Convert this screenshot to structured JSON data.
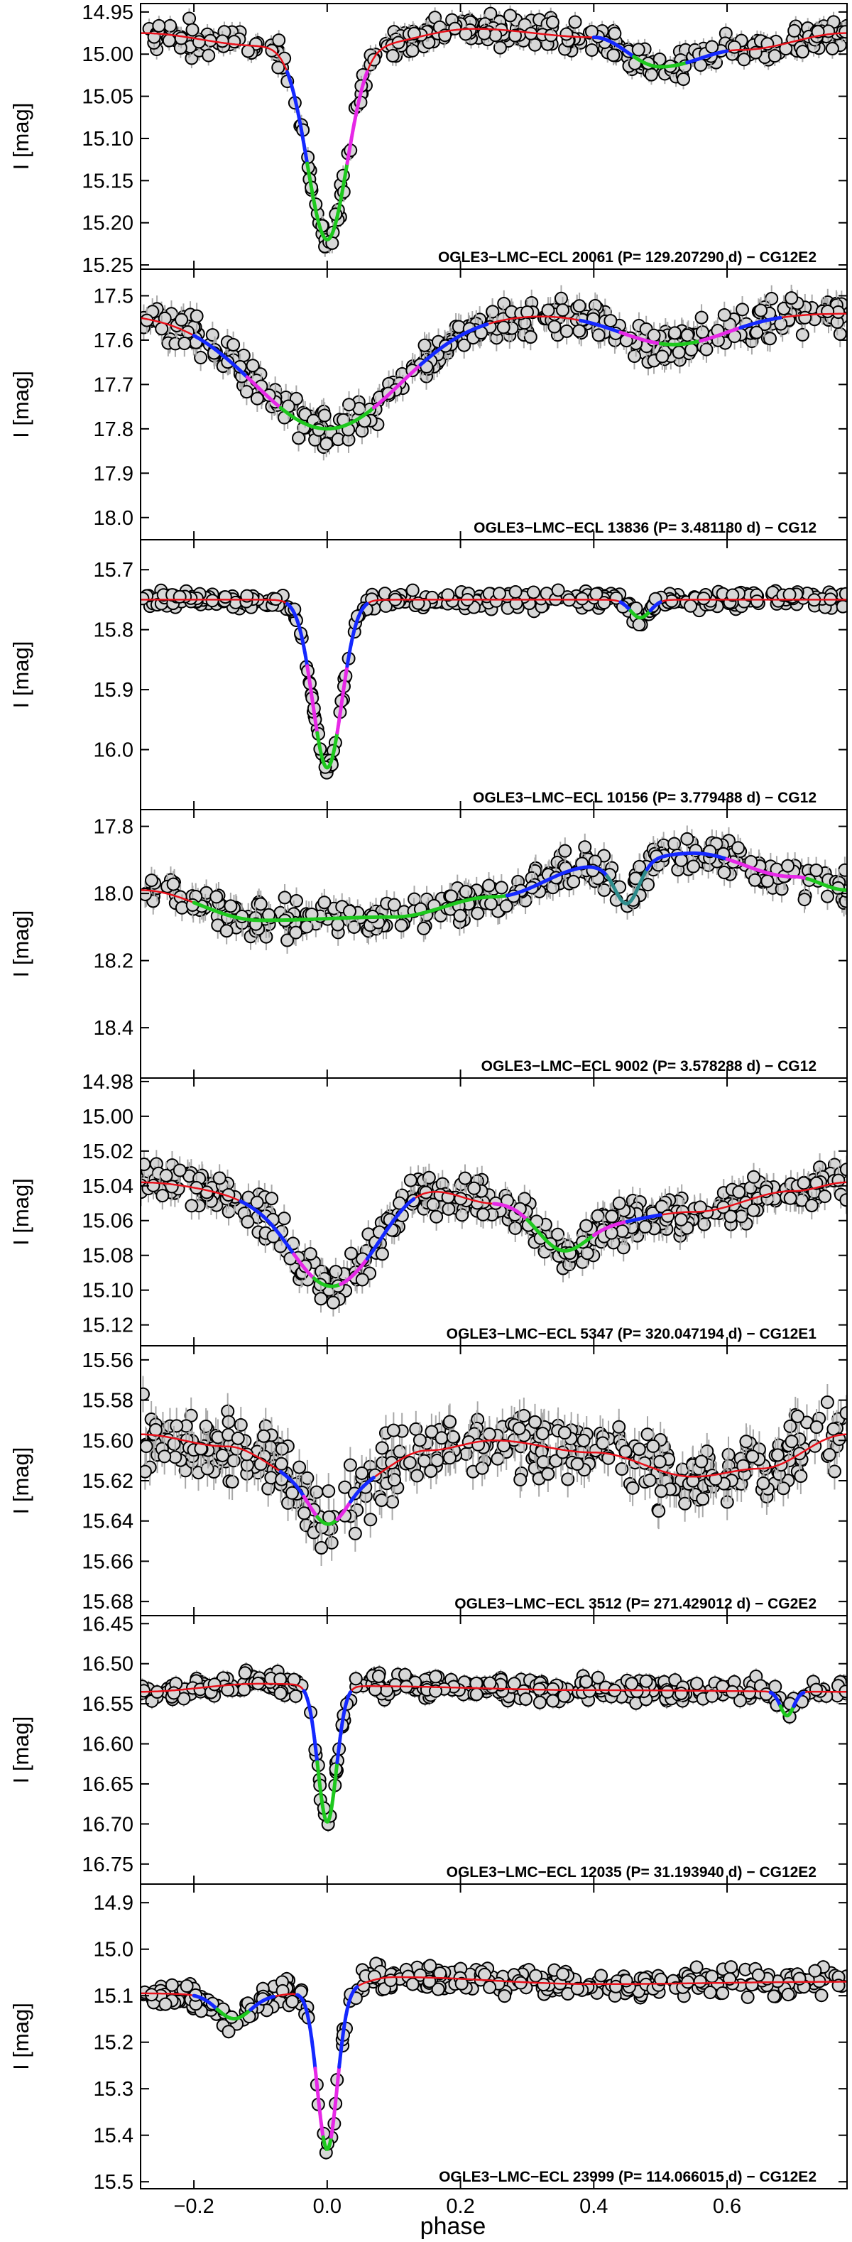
{
  "figure": {
    "xlabel": "phase",
    "ylabel": "I [mag]"
  },
  "chart_data": [
    {
      "type": "scatter",
      "title": "OGLE3-LMC-ECL 20061 (P= 129.207290 d) – CG12E2",
      "annotation": "OGLE3−LMC−ECL 20061  (P= 129.207290 d) − CG12E2",
      "xlabel": "phase",
      "ylabel": "I [mag]",
      "xlim": [
        -0.28,
        0.78
      ],
      "ylim": [
        14.94,
        15.255
      ],
      "y_inverted": true,
      "y_ticks": [
        14.95,
        15.0,
        15.05,
        15.1,
        15.15,
        15.2,
        15.25
      ],
      "y_tick_labels": [
        "14.95",
        "15.00",
        "15.05",
        "15.10",
        "15.15",
        "15.20",
        "15.25"
      ],
      "model": {
        "baseline": [
          [
            -0.28,
            14.975
          ],
          [
            -0.1,
            14.99
          ],
          [
            0.05,
            14.99
          ],
          [
            0.22,
            14.97
          ],
          [
            0.4,
            14.98
          ],
          [
            0.5,
            15.015
          ],
          [
            0.62,
            14.995
          ],
          [
            0.78,
            14.975
          ]
        ],
        "eclipses": [
          {
            "center": 0.0,
            "depth": 0.23,
            "width": 0.03
          }
        ]
      },
      "segments": [
        {
          "from": -0.06,
          "to": -0.03,
          "color": "blue"
        },
        {
          "from": -0.03,
          "to": 0.03,
          "color": "green"
        },
        {
          "from": 0.03,
          "to": 0.06,
          "color": "magenta"
        },
        {
          "from": 0.4,
          "to": 0.46,
          "color": "blue"
        },
        {
          "from": 0.46,
          "to": 0.54,
          "color": "green"
        },
        {
          "from": 0.54,
          "to": 0.6,
          "color": "blue"
        }
      ],
      "points": {
        "count": 380,
        "scatter": 0.012,
        "error": 0.012,
        "seed": 11
      }
    },
    {
      "type": "scatter",
      "title": "OGLE3-LMC-ECL 13836 (P= 3.481180 d) – CG12",
      "annotation": "OGLE3−LMC−ECL 13836  (P= 3.481180 d) − CG12",
      "xlabel": "phase",
      "ylabel": "I [mag]",
      "xlim": [
        -0.28,
        0.78
      ],
      "ylim": [
        17.44,
        18.05
      ],
      "y_inverted": true,
      "y_ticks": [
        17.5,
        17.6,
        17.7,
        17.8,
        17.9,
        18.0
      ],
      "y_tick_labels": [
        "17.5",
        "17.6",
        "17.7",
        "17.8",
        "17.9",
        "18.0"
      ],
      "model": {
        "baseline": [
          [
            -0.28,
            17.54
          ],
          [
            0.78,
            17.54
          ]
        ],
        "eclipses": [
          {
            "center": 0.0,
            "depth": 0.26,
            "width": 0.11
          },
          {
            "center": 0.52,
            "depth": 0.07,
            "width": 0.08
          }
        ]
      },
      "segments": [
        {
          "from": -0.2,
          "to": -0.12,
          "color": "blue"
        },
        {
          "from": -0.12,
          "to": -0.07,
          "color": "magenta"
        },
        {
          "from": -0.07,
          "to": 0.07,
          "color": "green"
        },
        {
          "from": 0.07,
          "to": 0.14,
          "color": "magenta"
        },
        {
          "from": 0.14,
          "to": 0.24,
          "color": "blue"
        },
        {
          "from": 0.38,
          "to": 0.44,
          "color": "blue"
        },
        {
          "from": 0.44,
          "to": 0.5,
          "color": "magenta"
        },
        {
          "from": 0.5,
          "to": 0.56,
          "color": "green"
        },
        {
          "from": 0.56,
          "to": 0.62,
          "color": "magenta"
        },
        {
          "from": 0.62,
          "to": 0.68,
          "color": "blue"
        }
      ],
      "points": {
        "count": 380,
        "scatter": 0.03,
        "error": 0.03,
        "seed": 23
      }
    },
    {
      "type": "scatter",
      "title": "OGLE3-LMC-ECL 10156 (P= 3.779488 d) – CG12",
      "annotation": "OGLE3−LMC−ECL 10156  (P= 3.779488 d) − CG12",
      "xlabel": "phase",
      "ylabel": "I [mag]",
      "xlim": [
        -0.28,
        0.78
      ],
      "ylim": [
        15.65,
        16.1
      ],
      "y_inverted": true,
      "y_ticks": [
        15.7,
        15.8,
        15.9,
        16.0
      ],
      "y_tick_labels": [
        "15.7",
        "15.8",
        "15.9",
        "16.0"
      ],
      "model": {
        "baseline": [
          [
            -0.28,
            15.75
          ],
          [
            0.78,
            15.75
          ]
        ],
        "eclipses": [
          {
            "center": 0.0,
            "depth": 0.28,
            "width": 0.022
          },
          {
            "center": 0.47,
            "depth": 0.03,
            "width": 0.015
          }
        ]
      },
      "segments": [
        {
          "from": -0.06,
          "to": -0.03,
          "color": "blue"
        },
        {
          "from": -0.03,
          "to": -0.015,
          "color": "magenta"
        },
        {
          "from": -0.015,
          "to": 0.015,
          "color": "green"
        },
        {
          "from": 0.015,
          "to": 0.03,
          "color": "magenta"
        },
        {
          "from": 0.03,
          "to": 0.06,
          "color": "blue"
        },
        {
          "from": 0.44,
          "to": 0.455,
          "color": "blue"
        },
        {
          "from": 0.455,
          "to": 0.485,
          "color": "green"
        },
        {
          "from": 0.485,
          "to": 0.5,
          "color": "blue"
        }
      ],
      "points": {
        "count": 380,
        "scatter": 0.01,
        "error": 0.008,
        "seed": 37
      }
    },
    {
      "type": "scatter",
      "title": "OGLE3-LMC-ECL 9002 (P= 3.578288 d) – CG12",
      "annotation": "OGLE3−LMC−ECL 9002  (P= 3.578288 d) − CG12",
      "xlabel": "phase",
      "ylabel": "I [mag]",
      "xlim": [
        -0.28,
        0.78
      ],
      "ylim": [
        17.75,
        18.55
      ],
      "y_inverted": true,
      "y_ticks": [
        17.8,
        18.0,
        18.2,
        18.4
      ],
      "y_tick_labels": [
        "17.8",
        "18.0",
        "18.2",
        "18.4"
      ],
      "model": {
        "baseline": [
          [
            -0.28,
            17.99
          ],
          [
            -0.1,
            18.08
          ],
          [
            0.1,
            18.07
          ],
          [
            0.25,
            18.01
          ],
          [
            0.4,
            17.92
          ],
          [
            0.55,
            17.88
          ],
          [
            0.7,
            17.95
          ],
          [
            0.78,
            17.99
          ]
        ],
        "eclipses": [
          {
            "center": 0.45,
            "depth": 0.12,
            "width": 0.018
          }
        ]
      },
      "segments": [
        {
          "from": -0.2,
          "to": 0.27,
          "color": "green"
        },
        {
          "from": 0.27,
          "to": 0.42,
          "color": "blue"
        },
        {
          "from": 0.42,
          "to": 0.48,
          "color": "teal"
        },
        {
          "from": 0.48,
          "to": 0.6,
          "color": "blue"
        },
        {
          "from": 0.6,
          "to": 0.72,
          "color": "magenta"
        },
        {
          "from": 0.72,
          "to": 0.78,
          "color": "green"
        }
      ],
      "points": {
        "count": 330,
        "scatter": 0.04,
        "error": 0.04,
        "seed": 53
      }
    },
    {
      "type": "scatter",
      "title": "OGLE3-LMC-ECL 5347 (P= 320.047194 d) – CG12E1",
      "annotation": "OGLE3−LMC−ECL 5347  (P= 320.047194 d) − CG12E1",
      "xlabel": "phase",
      "ylabel": "I [mag]",
      "xlim": [
        -0.28,
        0.78
      ],
      "ylim": [
        14.978,
        15.132
      ],
      "y_inverted": true,
      "y_ticks": [
        14.98,
        15.0,
        15.02,
        15.04,
        15.06,
        15.08,
        15.1,
        15.12
      ],
      "y_tick_labels": [
        "14.98",
        "15.00",
        "15.02",
        "15.04",
        "15.06",
        "15.08",
        "15.10",
        "15.12"
      ],
      "model": {
        "baseline": [
          [
            -0.28,
            15.038
          ],
          [
            -0.1,
            15.045
          ],
          [
            0.05,
            15.055
          ],
          [
            0.15,
            15.042
          ],
          [
            0.25,
            15.05
          ],
          [
            0.4,
            15.062
          ],
          [
            0.55,
            15.055
          ],
          [
            0.7,
            15.043
          ],
          [
            0.78,
            15.038
          ]
        ],
        "eclipses": [
          {
            "center": 0.0,
            "depth": 0.045,
            "width": 0.06
          },
          {
            "center": 0.35,
            "depth": 0.018,
            "width": 0.035
          }
        ]
      },
      "segments": [
        {
          "from": -0.13,
          "to": -0.05,
          "color": "blue"
        },
        {
          "from": -0.05,
          "to": -0.02,
          "color": "magenta"
        },
        {
          "from": -0.02,
          "to": 0.02,
          "color": "green"
        },
        {
          "from": 0.02,
          "to": 0.06,
          "color": "magenta"
        },
        {
          "from": 0.06,
          "to": 0.13,
          "color": "blue"
        },
        {
          "from": 0.25,
          "to": 0.3,
          "color": "magenta"
        },
        {
          "from": 0.3,
          "to": 0.4,
          "color": "green"
        },
        {
          "from": 0.4,
          "to": 0.45,
          "color": "magenta"
        },
        {
          "from": 0.45,
          "to": 0.5,
          "color": "blue"
        }
      ],
      "points": {
        "count": 420,
        "scatter": 0.008,
        "error": 0.008,
        "seed": 71
      }
    },
    {
      "type": "scatter",
      "title": "OGLE3-LMC-ECL 3512 (P= 271.429012 d) – CG2E2",
      "annotation": "OGLE3−LMC−ECL 3512  (P= 271.429012 d) − CG2E2",
      "xlabel": "phase",
      "ylabel": "I [mag]",
      "xlim": [
        -0.28,
        0.78
      ],
      "ylim": [
        15.553,
        15.687
      ],
      "y_inverted": true,
      "y_ticks": [
        15.56,
        15.58,
        15.6,
        15.62,
        15.64,
        15.66,
        15.68
      ],
      "y_tick_labels": [
        "15.56",
        "15.58",
        "15.60",
        "15.62",
        "15.64",
        "15.66",
        "15.68"
      ],
      "model": {
        "baseline": [
          [
            -0.28,
            15.597
          ],
          [
            -0.15,
            15.603
          ],
          [
            -0.05,
            15.615
          ],
          [
            0.05,
            15.618
          ],
          [
            0.15,
            15.605
          ],
          [
            0.25,
            15.6
          ],
          [
            0.4,
            15.606
          ],
          [
            0.55,
            15.618
          ],
          [
            0.65,
            15.614
          ],
          [
            0.78,
            15.597
          ]
        ],
        "eclipses": [
          {
            "center": 0.0,
            "depth": 0.025,
            "width": 0.03
          }
        ]
      },
      "segments": [
        {
          "from": -0.07,
          "to": -0.035,
          "color": "blue"
        },
        {
          "from": -0.035,
          "to": -0.015,
          "color": "magenta"
        },
        {
          "from": -0.015,
          "to": 0.015,
          "color": "green"
        },
        {
          "from": 0.015,
          "to": 0.035,
          "color": "magenta"
        },
        {
          "from": 0.035,
          "to": 0.07,
          "color": "blue"
        }
      ],
      "points": {
        "count": 420,
        "scatter": 0.012,
        "error": 0.009,
        "seed": 89
      }
    },
    {
      "type": "scatter",
      "title": "OGLE3-LMC-ECL 12035 (P= 31.193940 d) – CG12E2",
      "annotation": "OGLE3−LMC−ECL 12035  (P= 31.193940 d) − CG12E2",
      "xlabel": "phase",
      "ylabel": "I [mag]",
      "xlim": [
        -0.28,
        0.78
      ],
      "ylim": [
        16.44,
        16.775
      ],
      "y_inverted": true,
      "y_ticks": [
        16.45,
        16.5,
        16.55,
        16.6,
        16.65,
        16.7,
        16.75
      ],
      "y_tick_labels": [
        "16.45",
        "16.50",
        "16.55",
        "16.60",
        "16.65",
        "16.70",
        "16.75"
      ],
      "model": {
        "baseline": [
          [
            -0.28,
            16.535
          ],
          [
            -0.1,
            16.525
          ],
          [
            0.05,
            16.528
          ],
          [
            0.4,
            16.533
          ],
          [
            0.78,
            16.535
          ]
        ],
        "eclipses": [
          {
            "center": 0.0,
            "depth": 0.17,
            "width": 0.014
          },
          {
            "center": 0.69,
            "depth": 0.03,
            "width": 0.01
          }
        ]
      },
      "segments": [
        {
          "from": -0.035,
          "to": -0.015,
          "color": "blue"
        },
        {
          "from": -0.015,
          "to": 0.015,
          "color": "green"
        },
        {
          "from": 0.015,
          "to": 0.035,
          "color": "blue"
        },
        {
          "from": 0.665,
          "to": 0.68,
          "color": "blue"
        },
        {
          "from": 0.68,
          "to": 0.7,
          "color": "green"
        },
        {
          "from": 0.7,
          "to": 0.715,
          "color": "blue"
        }
      ],
      "points": {
        "count": 380,
        "scatter": 0.01,
        "error": 0.01,
        "seed": 101
      }
    },
    {
      "type": "scatter",
      "title": "OGLE3-LMC-ECL 23999 (P= 114.066015 d) – CG12E2",
      "annotation": "OGLE3−LMC−ECL 23999  (P= 114.066015 d) − CG12E2",
      "xlabel": "phase",
      "ylabel": "I [mag]",
      "xlim": [
        -0.28,
        0.78
      ],
      "ylim": [
        14.86,
        15.515
      ],
      "y_inverted": true,
      "y_ticks": [
        14.9,
        15.0,
        15.1,
        15.2,
        15.3,
        15.4,
        15.5
      ],
      "y_tick_labels": [
        "14.9",
        "15.0",
        "15.1",
        "15.2",
        "15.3",
        "15.4",
        "15.5"
      ],
      "x_ticks": [
        -0.2,
        0.0,
        0.2,
        0.4,
        0.6
      ],
      "x_tick_labels": [
        "−0.2",
        "0.0",
        "0.2",
        "0.4",
        "0.6"
      ],
      "model": {
        "baseline": [
          [
            -0.28,
            15.095
          ],
          [
            -0.1,
            15.1
          ],
          [
            0.0,
            15.09
          ],
          [
            0.1,
            15.06
          ],
          [
            0.4,
            15.075
          ],
          [
            0.78,
            15.07
          ]
        ],
        "eclipses": [
          {
            "center": 0.0,
            "depth": 0.34,
            "width": 0.015
          },
          {
            "center": -0.14,
            "depth": 0.05,
            "width": 0.025
          }
        ]
      },
      "segments": [
        {
          "from": -0.2,
          "to": -0.165,
          "color": "blue"
        },
        {
          "from": -0.165,
          "to": -0.115,
          "color": "green"
        },
        {
          "from": -0.115,
          "to": -0.08,
          "color": "blue"
        },
        {
          "from": -0.045,
          "to": -0.018,
          "color": "blue"
        },
        {
          "from": -0.018,
          "to": -0.006,
          "color": "magenta"
        },
        {
          "from": -0.006,
          "to": 0.006,
          "color": "green"
        },
        {
          "from": 0.006,
          "to": 0.018,
          "color": "magenta"
        },
        {
          "from": 0.018,
          "to": 0.045,
          "color": "blue"
        }
      ],
      "points": {
        "count": 380,
        "scatter": 0.02,
        "error": 0.015,
        "seed": 131
      }
    }
  ]
}
